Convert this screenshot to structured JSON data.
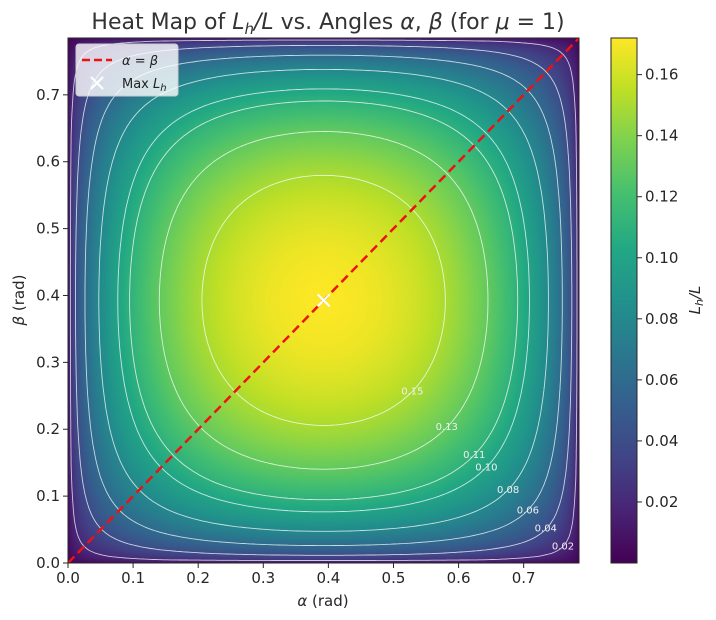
{
  "chart_data": {
    "type": "heatmap",
    "title": "Heat Map of L_h/L vs. Angles α, β (for μ = 1)",
    "xlabel": "α (rad)",
    "ylabel": "β (rad)",
    "xlim": [
      0,
      0.785
    ],
    "ylim": [
      0,
      0.785
    ],
    "x_ticks": [
      "0.0",
      "0.1",
      "0.2",
      "0.3",
      "0.4",
      "0.5",
      "0.6",
      "0.7"
    ],
    "y_ticks": [
      "0.0",
      "0.1",
      "0.2",
      "0.3",
      "0.4",
      "0.5",
      "0.6",
      "0.7"
    ],
    "colorbar": {
      "label": "L_h/L",
      "range": [
        0.0,
        0.172
      ],
      "colormap": "viridis",
      "ticks": [
        "0.02",
        "0.04",
        "0.06",
        "0.08",
        "0.10",
        "0.12",
        "0.14",
        "0.16"
      ]
    },
    "contour_levels": [
      0.02,
      0.04,
      0.06,
      0.08,
      0.1,
      0.11,
      0.13,
      0.15
    ],
    "contour_labels": [
      "0.02",
      "0.04",
      "0.06",
      "0.08",
      "0.10",
      "0.11",
      "0.13",
      "0.15"
    ],
    "diagonal_line": {
      "label": "α = β",
      "color": "#ee1111",
      "style": "dashed",
      "from": [
        0,
        0
      ],
      "to": [
        0.785,
        0.785
      ]
    },
    "max_marker": {
      "label": "Max L_h",
      "alpha": 0.3927,
      "beta": 0.3927,
      "value": 0.1716,
      "marker": "x",
      "color": "#ffffff"
    },
    "legend": {
      "placement": "top-left",
      "entries": [
        "α = β",
        "Max L_h"
      ]
    },
    "grid": false
  }
}
